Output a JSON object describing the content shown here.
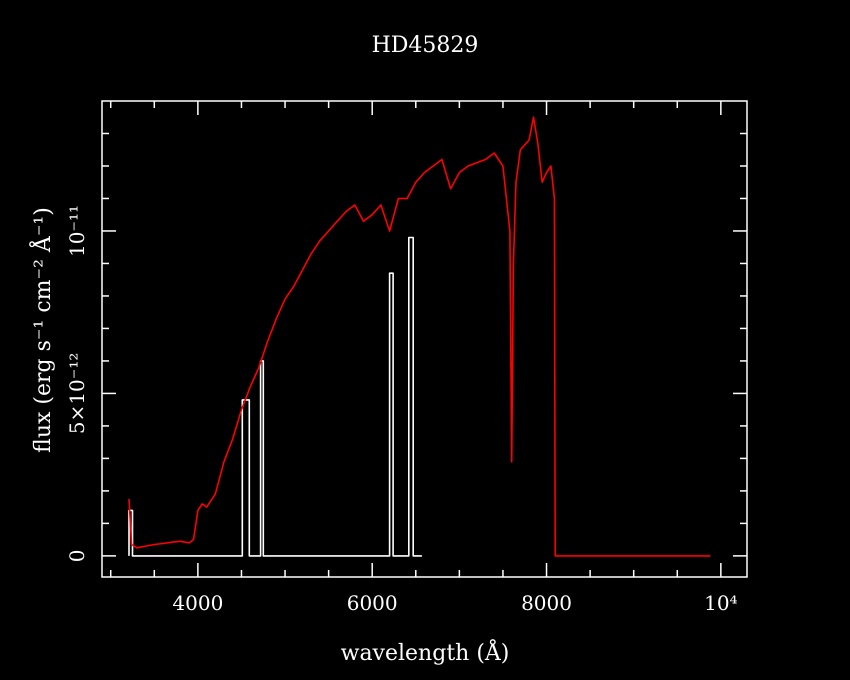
{
  "chart_data": {
    "type": "line",
    "title": "HD45829",
    "xlabel": "wavelength (Å)",
    "ylabel": "flux (erg s⁻¹ cm⁻² Å⁻¹)",
    "xlim": [
      2900,
      10300
    ],
    "ylim": [
      -6.5e-13,
      1.4e-11
    ],
    "x_ticks": [
      {
        "value": 4000,
        "label": "4000"
      },
      {
        "value": 6000,
        "label": "6000"
      },
      {
        "value": 8000,
        "label": "8000"
      },
      {
        "value": 10000,
        "label": "10⁴"
      }
    ],
    "y_ticks": [
      {
        "value": 0,
        "label": "0"
      },
      {
        "value": 5e-12,
        "label": "5×10⁻¹²"
      },
      {
        "value": 1e-11,
        "label": "10⁻¹¹"
      }
    ],
    "colors": {
      "background": "#000000",
      "axes": "#ffffff",
      "flux": "#ff0000",
      "mask": "#ffffff"
    },
    "series": [
      {
        "color": "#ff0000",
        "x": [
          3210,
          3240,
          3300,
          3400,
          3500,
          3600,
          3700,
          3800,
          3900,
          3950,
          4000,
          4050,
          4100,
          4150,
          4200,
          4300,
          4400,
          4500,
          4600,
          4700,
          4800,
          4900,
          5000,
          5100,
          5200,
          5300,
          5400,
          5500,
          5600,
          5700,
          5800,
          5900,
          6000,
          6100,
          6200,
          6300,
          6400,
          6500,
          6600,
          6700,
          6800,
          6900,
          7000,
          7100,
          7200,
          7300,
          7400,
          7500,
          7580,
          7600,
          7620,
          7650,
          7700,
          7800,
          7850,
          7900,
          7950,
          8000,
          8050,
          8090,
          8100,
          8200,
          8500,
          9000,
          9500,
          9880
        ],
        "y": [
          1.75e-12,
          3.5e-13,
          2.5e-13,
          3e-13,
          3.5e-13,
          3.8e-13,
          4.2e-13,
          4.5e-13,
          4e-13,
          5e-13,
          1.4e-12,
          1.6e-12,
          1.5e-12,
          1.7e-12,
          1.9e-12,
          2.9e-12,
          3.6e-12,
          4.5e-12,
          5.2e-12,
          5.8e-12,
          6.6e-12,
          7.3e-12,
          7.9e-12,
          8.3e-12,
          8.8e-12,
          9.3e-12,
          9.7e-12,
          1e-11,
          1.03e-11,
          1.06e-11,
          1.08e-11,
          1.03e-11,
          1.05e-11,
          1.08e-11,
          1e-11,
          1.1e-11,
          1.1e-11,
          1.15e-11,
          1.18e-11,
          1.2e-11,
          1.22e-11,
          1.13e-11,
          1.18e-11,
          1.2e-11,
          1.21e-11,
          1.22e-11,
          1.24e-11,
          1.2e-11,
          1e-11,
          2.9e-12,
          9e-12,
          1.15e-11,
          1.25e-11,
          1.28e-11,
          1.35e-11,
          1.27e-11,
          1.15e-11,
          1.18e-11,
          1.2e-11,
          1.1e-11,
          0,
          0,
          0,
          0,
          0,
          0
        ]
      },
      {
        "color": "#ffffff",
        "x": [
          3210,
          3210,
          3250,
          3250,
          4440,
          4510,
          4510,
          4590,
          4590,
          4720,
          4720,
          4750,
          4750,
          4850,
          6000,
          6200,
          6200,
          6240,
          6240,
          6420,
          6420,
          6470,
          6470,
          6570
        ],
        "y": [
          0,
          1.4e-12,
          1.4e-12,
          0,
          0,
          0,
          4.8e-12,
          4.8e-12,
          0,
          0,
          6e-12,
          6e-12,
          0,
          0,
          0,
          0,
          8.7e-12,
          8.7e-12,
          0,
          0,
          9.8e-12,
          9.8e-12,
          0,
          0
        ]
      }
    ]
  }
}
